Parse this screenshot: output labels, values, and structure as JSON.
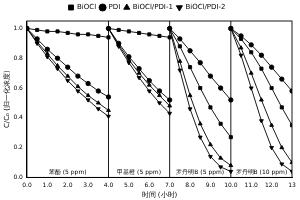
{
  "chart_data": {
    "type": "line",
    "x_label": "时间 (小时)",
    "y_label": "C/C₀ (归一化浓度)",
    "x": [
      0,
      0.5,
      1,
      1.5,
      2,
      2.5,
      3,
      3.5,
      4,
      4,
      4,
      4.5,
      5,
      5.5,
      6,
      6.5,
      7,
      7,
      7,
      7.5,
      8,
      8.5,
      9,
      9.5,
      10,
      10,
      10,
      10.5,
      11,
      11.5,
      12,
      12.5,
      13
    ],
    "series": [
      {
        "name": "BiOCl",
        "color": "#000000",
        "marker": "square",
        "values": [
          1,
          0.99,
          0.98,
          0.98,
          0.97,
          0.96,
          0.96,
          0.95,
          0.94,
          null,
          1,
          0.99,
          0.98,
          0.97,
          0.96,
          0.95,
          0.94,
          null,
          1,
          0.88,
          0.74,
          0.6,
          0.47,
          0.36,
          0.27,
          null,
          1,
          0.93,
          0.84,
          0.73,
          0.6,
          0.47,
          0.35
        ]
      },
      {
        "name": "PDI",
        "color": "#000000",
        "marker": "circle",
        "values": [
          1,
          0.93,
          0.86,
          0.8,
          0.74,
          0.68,
          0.63,
          0.58,
          0.54,
          null,
          1,
          0.9,
          0.81,
          0.73,
          0.65,
          0.58,
          0.52,
          null,
          1,
          0.93,
          0.85,
          0.77,
          0.68,
          0.6,
          0.52,
          null,
          1,
          0.95,
          0.89,
          0.82,
          0.74,
          0.66,
          0.58
        ]
      },
      {
        "name": "BiOCl/PDI-1",
        "color": "#000000",
        "marker": "triangle-up",
        "values": [
          1,
          0.91,
          0.83,
          0.75,
          0.68,
          0.61,
          0.55,
          0.5,
          0.45,
          null,
          1,
          0.89,
          0.79,
          0.7,
          0.62,
          0.55,
          0.48,
          null,
          1,
          0.78,
          0.55,
          0.36,
          0.22,
          0.13,
          0.08,
          null,
          1,
          0.87,
          0.7,
          0.52,
          0.35,
          0.2,
          0.1
        ]
      },
      {
        "name": "BiOCl/PDI-2",
        "color": "#000000",
        "marker": "triangle-down",
        "values": [
          1,
          0.9,
          0.81,
          0.73,
          0.65,
          0.58,
          0.52,
          0.46,
          0.41,
          null,
          1,
          0.88,
          0.77,
          0.67,
          0.58,
          0.5,
          0.43,
          null,
          1,
          0.72,
          0.46,
          0.27,
          0.14,
          0.07,
          0.04,
          null,
          1,
          0.82,
          0.6,
          0.38,
          0.2,
          0.09,
          0.04
        ]
      }
    ],
    "dividers": [
      4,
      7,
      10
    ],
    "annotations": [
      "苯酚 (5 ppm)",
      "甲基橙 (5 ppm)",
      "罗丹明B (5 ppm)",
      "罗丹明B (10 ppm)"
    ],
    "xlim": [
      0,
      13
    ],
    "xticks": [
      {
        "value": 0,
        "label": "0.0"
      },
      {
        "value": 1,
        "label": "1.0"
      },
      {
        "value": 2,
        "label": "2.0"
      },
      {
        "value": 3,
        "label": "3.0"
      },
      {
        "value": 4,
        "label": "4.0"
      },
      {
        "value": 5,
        "label": "5.0"
      },
      {
        "value": 6,
        "label": "6.0"
      },
      {
        "value": 7,
        "label": "7.0"
      },
      {
        "value": 8,
        "label": "8.0"
      },
      {
        "value": 9,
        "label": "9.0"
      },
      {
        "value": 10,
        "label": "10.0"
      },
      {
        "value": 11,
        "label": "11.0"
      },
      {
        "value": 12,
        "label": "12.0"
      },
      13
    ],
    "ylim": [
      0,
      1.05
    ],
    "yticks": [
      {
        "value": 0,
        "label": "0.0"
      },
      {
        "value": 0.2,
        "label": "0.2"
      },
      {
        "value": 0.4,
        "label": "0.4"
      },
      {
        "value": 0.6,
        "label": "0.6"
      },
      {
        "value": 0.8,
        "label": "0.8"
      },
      {
        "value": 1,
        "label": "1.0"
      }
    ],
    "grid": false,
    "legend": "top"
  }
}
